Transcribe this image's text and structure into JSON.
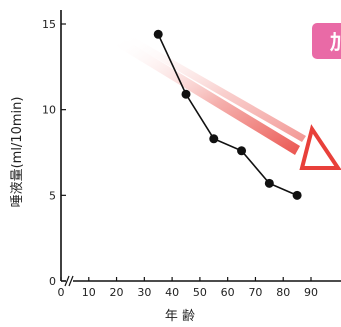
{
  "chart_data": {
    "type": "line",
    "xlabel": "年  齢",
    "ylabel": "唾液量(ml/10min)",
    "xlim": [
      0,
      90
    ],
    "ylim": [
      0,
      15
    ],
    "x_ticks": [
      0,
      10,
      20,
      30,
      40,
      50,
      60,
      70,
      80,
      90
    ],
    "y_ticks": [
      0,
      5,
      10,
      15
    ],
    "axis_break": "x-axis near origin",
    "grid": false,
    "series": [
      {
        "color": "#111111",
        "points": [
          {
            "x": 35,
            "y": 14.4
          },
          {
            "x": 45,
            "y": 10.9
          },
          {
            "x": 55,
            "y": 8.3
          },
          {
            "x": 65,
            "y": 7.6
          },
          {
            "x": 75,
            "y": 5.7
          },
          {
            "x": 85,
            "y": 5.0
          }
        ]
      }
    ]
  },
  "decorations": {
    "trend_arrow": {
      "direction": "down-right",
      "color": "#e8403a"
    },
    "corner_tag": {
      "text": "加",
      "color": "#e96aa6"
    }
  }
}
